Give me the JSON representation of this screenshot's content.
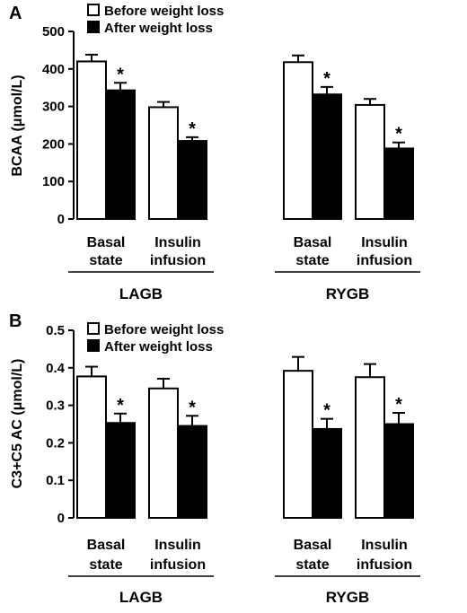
{
  "chart_data": [
    {
      "type": "bar",
      "panel_label": "A",
      "ylabel": "BCAA (μmol/L)",
      "ylim": [
        0,
        500
      ],
      "yticks": [
        "0",
        "100",
        "200",
        "300",
        "400",
        "500"
      ],
      "legend": {
        "placement": "top-left",
        "entries": [
          "Before weight loss",
          "After weight loss"
        ]
      },
      "groups": [
        {
          "label": "LAGB",
          "categories": [
            "Basal|state",
            "Insulin|infusion"
          ]
        },
        {
          "label": "RYGB",
          "categories": [
            "Basal|state",
            "Insulin|infusion"
          ]
        }
      ],
      "series": [
        {
          "name": "Before weight loss",
          "color": "#ffffff",
          "values": [
            420,
            298,
            418,
            304
          ],
          "errors": [
            18,
            14,
            18,
            16
          ]
        },
        {
          "name": "After weight loss",
          "color": "#000000",
          "values": [
            343,
            208,
            332,
            188
          ],
          "errors": [
            20,
            10,
            20,
            16
          ]
        }
      ],
      "significance": [
        false,
        false,
        false,
        false,
        true,
        true,
        true,
        true
      ],
      "marker": "*"
    },
    {
      "type": "bar",
      "panel_label": "B",
      "ylabel": "C3+C5 AC (μmol/L)",
      "ylim": [
        0,
        0.5
      ],
      "yticks": [
        "0",
        "0.1",
        "0.2",
        "0.3",
        "0.4",
        "0.5"
      ],
      "legend": {
        "placement": "top-left",
        "entries": [
          "Before weight loss",
          "After weight loss"
        ]
      },
      "groups": [
        {
          "label": "LAGB",
          "categories": [
            "Basal|state",
            "Insulin|infusion"
          ]
        },
        {
          "label": "RYGB",
          "categories": [
            "Basal|state",
            "Insulin|infusion"
          ]
        }
      ],
      "series": [
        {
          "name": "Before weight loss",
          "color": "#ffffff",
          "values": [
            0.377,
            0.345,
            0.392,
            0.375
          ],
          "errors": [
            0.026,
            0.026,
            0.037,
            0.035
          ]
        },
        {
          "name": "After weight loss",
          "color": "#000000",
          "values": [
            0.253,
            0.245,
            0.237,
            0.25
          ],
          "errors": [
            0.025,
            0.027,
            0.027,
            0.03
          ]
        }
      ],
      "significance": [
        false,
        false,
        false,
        false,
        true,
        true,
        true,
        true
      ],
      "marker": "*"
    }
  ]
}
